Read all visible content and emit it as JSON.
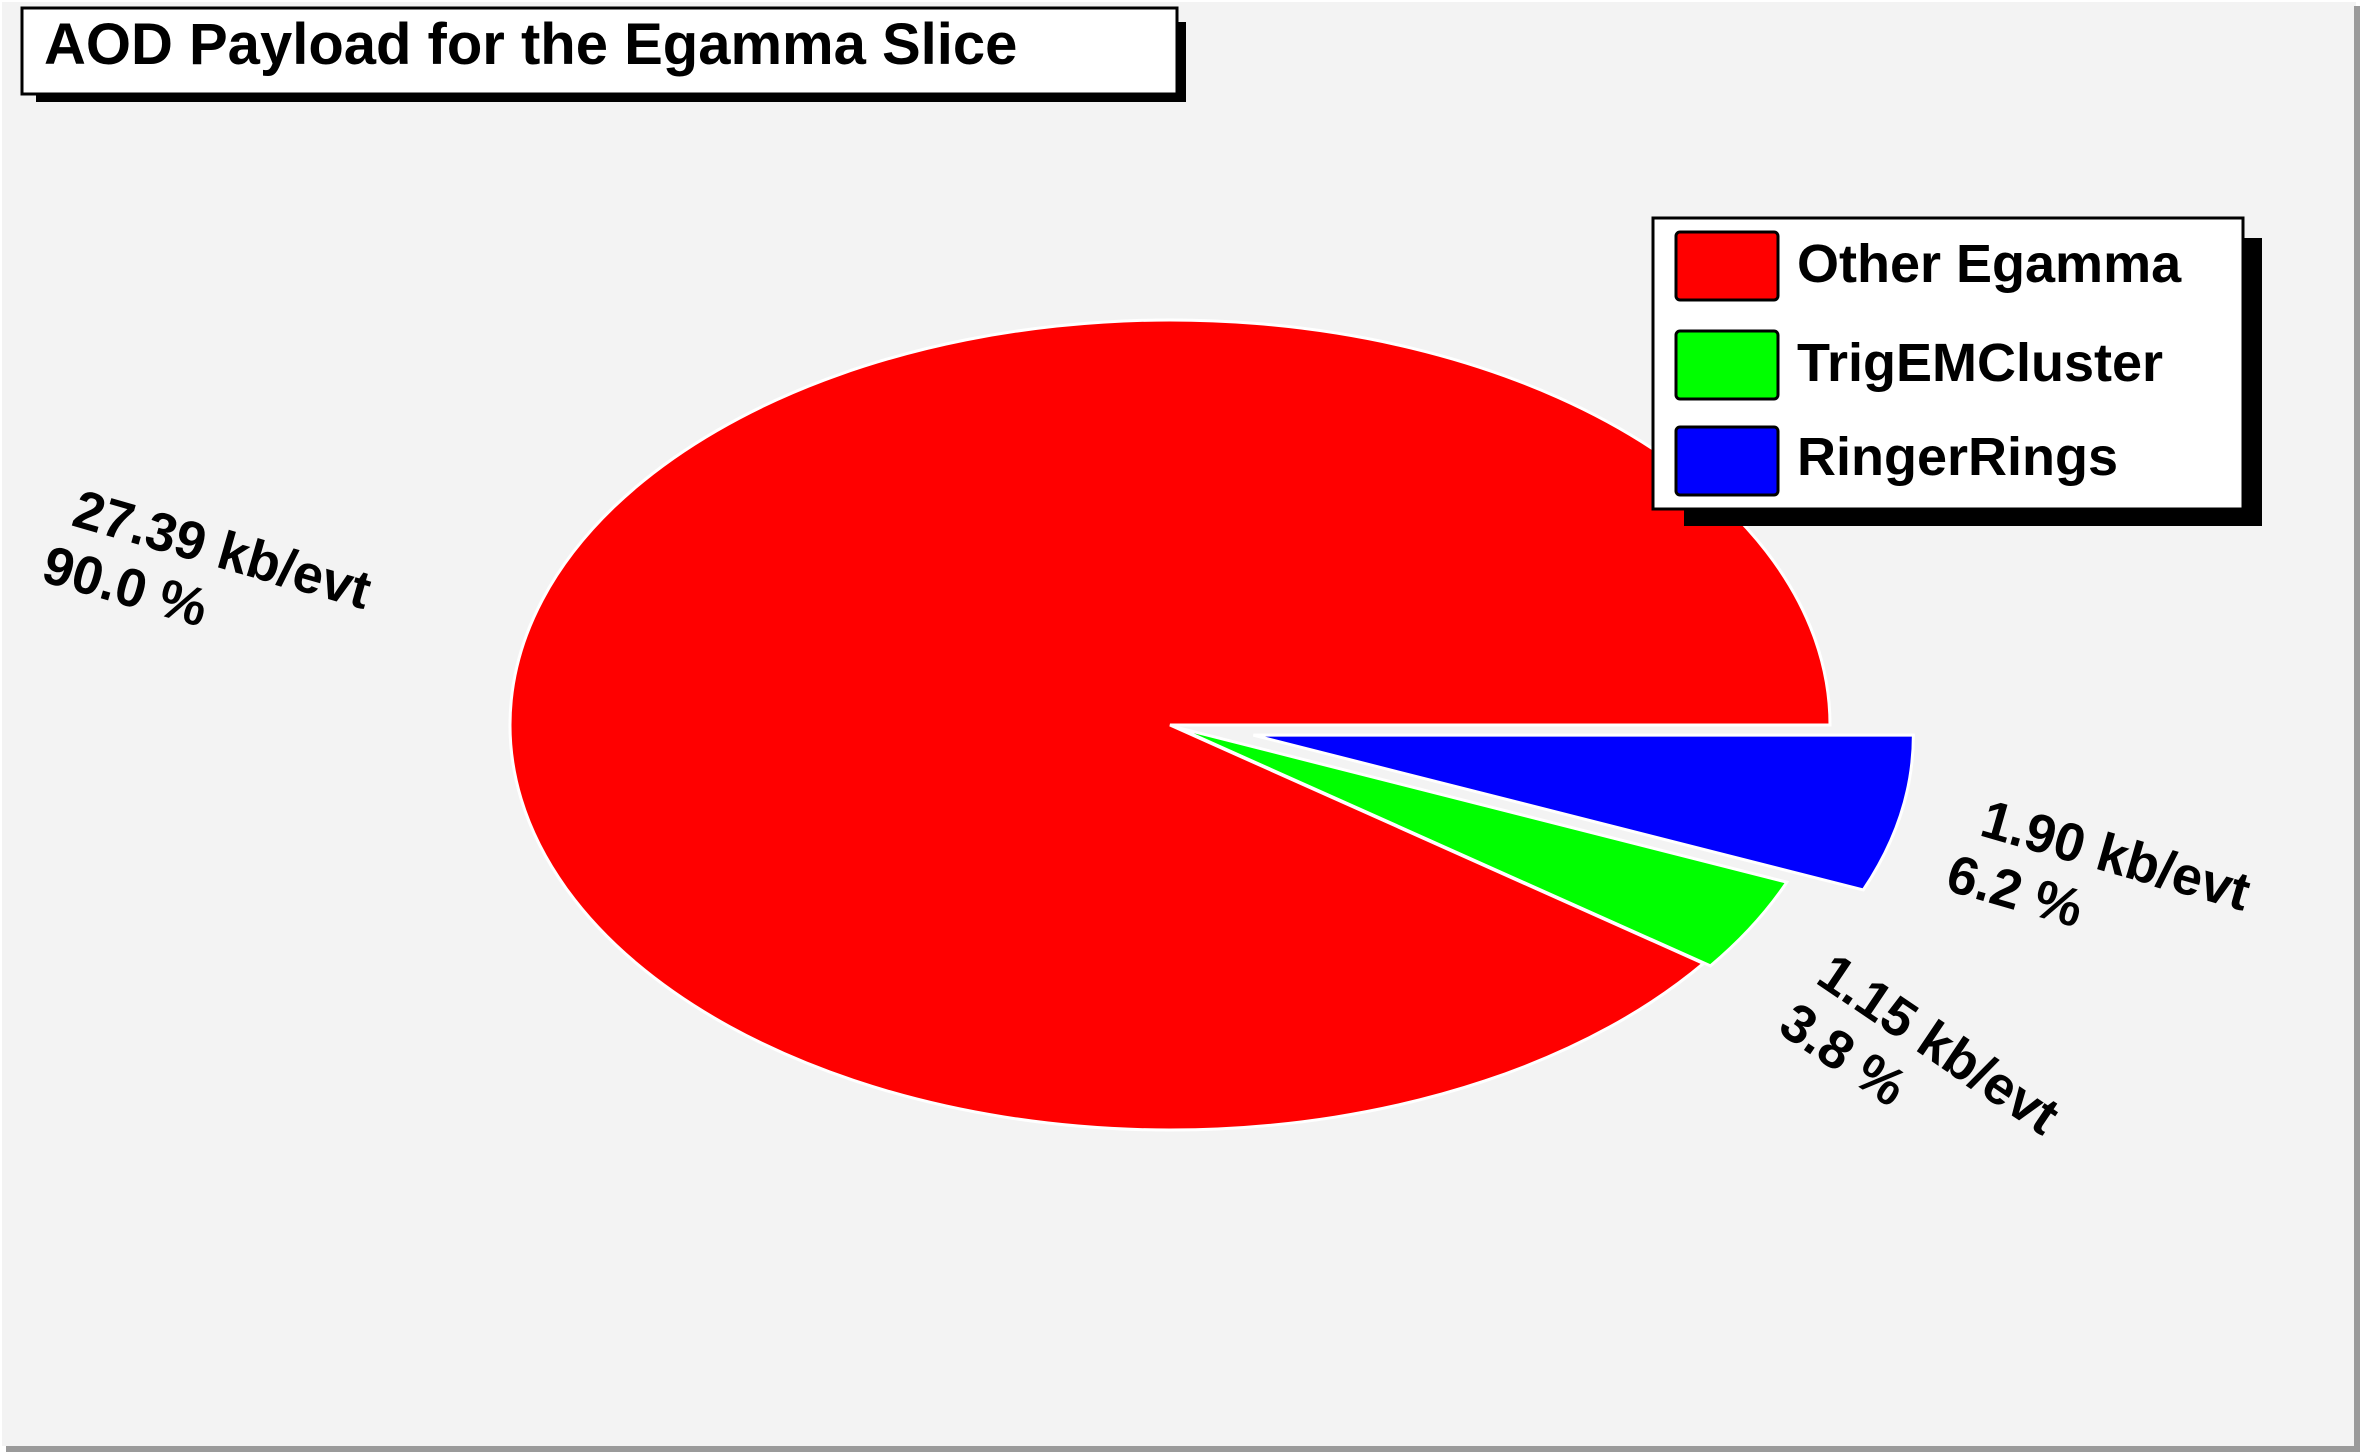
{
  "chart_data": {
    "type": "pie",
    "title": "AOD Payload for the Egamma Slice",
    "slices": [
      {
        "name": "Other Egamma",
        "value": 27.39,
        "unit_label": "27.39 kb/evt",
        "percent_label": "90.0 %",
        "color": "#ff0000"
      },
      {
        "name": "TrigEMCluster",
        "value": 1.15,
        "unit_label": "1.15 kb/evt",
        "percent_label": "3.8 %",
        "color": "#00ff00"
      },
      {
        "name": "RingerRings",
        "value": 1.9,
        "unit_label": "1.90 kb/evt",
        "percent_label": "6.2 %",
        "color": "#0000ff"
      }
    ],
    "legend": {
      "placement": "top-right",
      "entries": [
        "Other Egamma",
        "TrigEMCluster",
        "RingerRings"
      ]
    },
    "background_color": "#f3f3f3"
  }
}
